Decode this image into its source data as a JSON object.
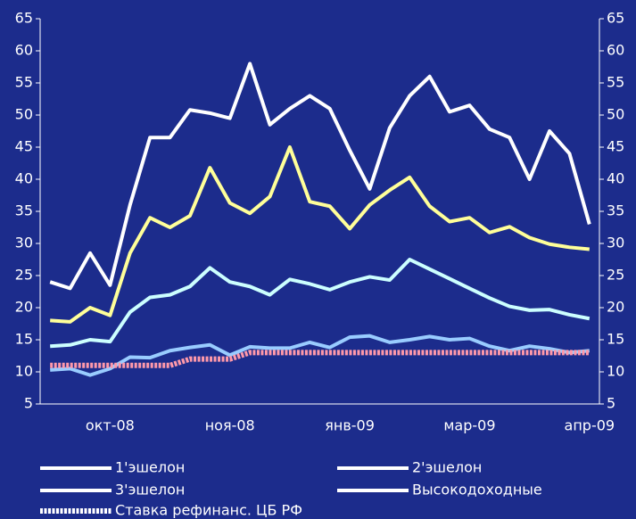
{
  "chart_data": {
    "type": "line",
    "categories": [
      null,
      null,
      null,
      "окт-08",
      null,
      null,
      null,
      null,
      null,
      "ноя-08",
      null,
      null,
      null,
      null,
      null,
      "янв-09",
      null,
      null,
      null,
      null,
      null,
      "мар-09",
      null,
      null,
      null,
      null,
      null,
      "апр-09"
    ],
    "series": [
      {
        "name": "1'эшелон",
        "color": "#99ccff",
        "values": [
          10.3,
          10.5,
          9.5,
          10.5,
          12.3,
          12.2,
          13.3,
          13.8,
          14.2,
          12.6,
          13.9,
          13.7,
          13.7,
          14.6,
          13.8,
          15.4,
          15.6,
          14.6,
          15,
          15.5,
          15,
          15.2,
          14,
          13.3,
          14,
          13.6,
          13,
          13.3
        ]
      },
      {
        "name": "2'эшелон",
        "color": "#ccffff",
        "values": [
          14,
          14.2,
          15,
          14.7,
          19.3,
          21.6,
          22,
          23.3,
          26.2,
          24,
          23.3,
          22,
          24.4,
          23.7,
          22.8,
          24,
          24.8,
          24.3,
          27.5,
          26,
          24.5,
          23,
          21.5,
          20.2,
          19.6,
          19.7,
          18.9,
          18.3
        ]
      },
      {
        "name": "3'эшелон",
        "color": "#ffff99",
        "values": [
          18,
          17.8,
          20,
          18.8,
          28.5,
          34,
          32.5,
          34.3,
          41.8,
          36.3,
          34.7,
          37.3,
          45,
          36.5,
          35.8,
          32.3,
          36,
          38.3,
          40.3,
          35.8,
          33.4,
          34,
          31.7,
          32.6,
          30.9,
          29.9,
          29.4,
          29.1
        ]
      },
      {
        "name": "Высокодоходные",
        "color": "#ffffff",
        "values": [
          24,
          23,
          28.5,
          23.5,
          36,
          46.5,
          46.5,
          50.8,
          50.3,
          49.5,
          58,
          48.5,
          51,
          53,
          51,
          44.5,
          38.5,
          48,
          53,
          56,
          50.5,
          51.5,
          47.8,
          46.5,
          40,
          47.5,
          44,
          33
        ]
      },
      {
        "name": "Ставка рефинанс. ЦБ РФ",
        "color": "#ff99aa",
        "values": [
          11,
          11,
          11,
          11,
          11,
          11,
          11,
          12,
          12,
          12,
          13,
          13,
          13,
          13,
          13,
          13,
          13,
          13,
          13,
          13,
          13,
          13,
          13,
          13,
          13,
          13,
          13,
          13
        ]
      }
    ],
    "ylim": [
      5,
      65
    ],
    "yticks": [
      5,
      10,
      15,
      20,
      25,
      30,
      35,
      40,
      45,
      50,
      55,
      60,
      65
    ],
    "y2lim": [
      5,
      65
    ],
    "y2ticks": [
      5,
      10,
      15,
      20,
      25,
      30,
      35,
      40,
      45,
      50,
      55,
      60,
      65
    ],
    "legend": "bottom"
  }
}
